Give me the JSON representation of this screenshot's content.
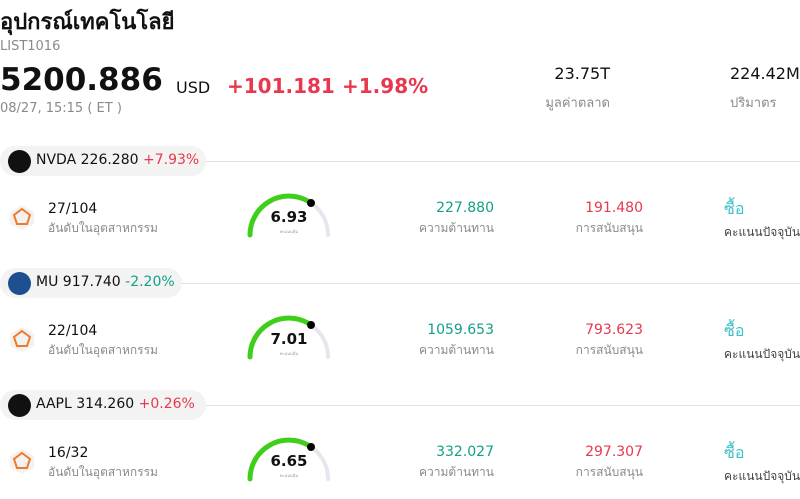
{
  "header": {
    "title": "อุปกรณ์เทคโนโลยี",
    "code": "LIST1016",
    "price": "5200.886",
    "currency": "USD",
    "change": "+101.181",
    "change_pct": "+1.98%",
    "time": "08/27, 15:15  ( ET )"
  },
  "stats": [
    {
      "value": "23.75T",
      "label": "มูลค่าตลาด"
    },
    {
      "value": "224.42M",
      "label": "ปริมาตร"
    }
  ],
  "stocks": [
    {
      "ticker": "NVDA",
      "price": "226.280",
      "change": "+7.93%",
      "rank": "27/104",
      "rank_label": "อันดับในอุตสาหกรรม",
      "score": "6.93",
      "score_label": "คะแนนหุ้น",
      "resistance": "227.880",
      "resistance_label": "ความต้านทาน",
      "support": "191.480",
      "support_label": "การสนับสนุน",
      "rating": "ซื้อ",
      "rating_label": "คะแนนปัจจุบัน"
    },
    {
      "ticker": "MU",
      "price": "917.740",
      "change": "-2.20%",
      "rank": "22/104",
      "rank_label": "อันดับในอุตสาหกรรม",
      "score": "7.01",
      "score_label": "คะแนนหุ้น",
      "resistance": "1059.653",
      "resistance_label": "ความต้านทาน",
      "support": "793.623",
      "support_label": "การสนับสนุน",
      "rating": "ซื้อ",
      "rating_label": "คะแนนปัจจุบัน"
    },
    {
      "ticker": "AAPL",
      "price": "314.260",
      "change": "+0.26%",
      "rank": "16/32",
      "rank_label": "อันดับในอุตสาหกรรม",
      "score": "6.65",
      "score_label": "คะแนนหุ้น",
      "resistance": "332.027",
      "resistance_label": "ความต้านทาน",
      "support": "297.307",
      "support_label": "การสนับสนุน",
      "rating": "ซื้อ",
      "rating_label": "คะแนนปัจจุบัน"
    }
  ]
}
